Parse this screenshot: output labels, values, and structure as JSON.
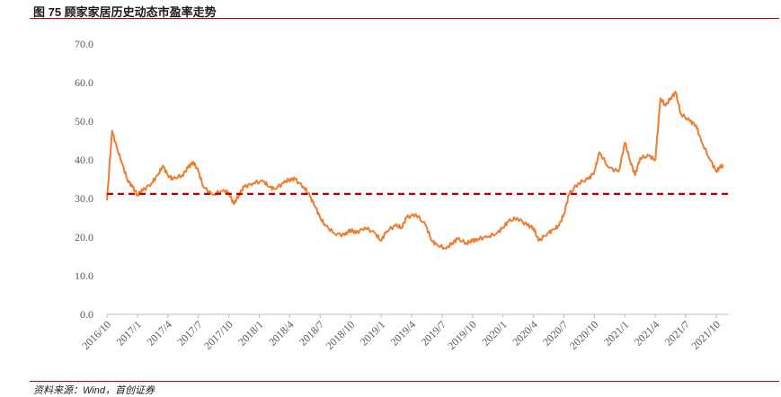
{
  "figure": {
    "title": "图 75 顾家家居历史动态市盈率走势",
    "source": "资料来源：Wind，首创证券"
  },
  "chart_data": {
    "type": "line",
    "title": "",
    "xlabel": "",
    "ylabel": "",
    "ylim": [
      0,
      70
    ],
    "yticks": [
      "0.0",
      "10.0",
      "20.0",
      "30.0",
      "40.0",
      "50.0",
      "60.0",
      "70.0"
    ],
    "yticks_values": [
      0,
      10,
      20,
      30,
      40,
      50,
      60,
      70
    ],
    "xticks": [
      "2016/10",
      "2017/1",
      "2017/4",
      "2017/7",
      "2017/10",
      "2018/1",
      "2018/4",
      "2018/7",
      "2018/10",
      "2019/1",
      "2019/4",
      "2019/7",
      "2019/10",
      "2020/1",
      "2020/4",
      "2020/7",
      "2020/10",
      "2021/1",
      "2021/4",
      "2021/7",
      "2021/10"
    ],
    "grid": false,
    "series": [
      {
        "kind": "line",
        "color": "#ed7d31",
        "x": [
          "2016/10",
          "2016/10",
          "2016/11",
          "2016/11",
          "2016/12",
          "2016/12",
          "2017/1",
          "2017/1",
          "2017/2",
          "2017/3",
          "2017/3",
          "2017/4",
          "2017/4",
          "2017/5",
          "2017/6",
          "2017/6",
          "2017/7",
          "2017/7",
          "2017/8",
          "2017/9",
          "2017/10",
          "2017/10",
          "2017/11",
          "2017/11",
          "2017/12",
          "2018/1",
          "2018/2",
          "2018/2",
          "2018/3",
          "2018/4",
          "2018/4",
          "2018/5",
          "2018/6",
          "2018/6",
          "2018/7",
          "2018/7",
          "2018/8",
          "2018/9",
          "2018/10",
          "2018/10",
          "2018/11",
          "2018/12",
          "2019/1",
          "2019/1",
          "2019/2",
          "2019/3",
          "2019/3",
          "2019/4",
          "2019/5",
          "2019/6",
          "2019/6",
          "2019/7",
          "2019/8",
          "2019/8",
          "2019/9",
          "2019/10",
          "2019/10",
          "2019/11",
          "2019/12",
          "2020/1",
          "2020/1",
          "2020/2",
          "2020/3",
          "2020/4",
          "2020/4",
          "2020/5",
          "2020/6",
          "2020/6",
          "2020/7",
          "2020/7",
          "2020/8",
          "2020/9",
          "2020/10",
          "2020/10",
          "2020/11",
          "2020/12",
          "2021/1",
          "2021/1",
          "2021/2",
          "2021/2",
          "2021/3",
          "2021/4",
          "2021/4",
          "2021/5",
          "2021/5",
          "2021/6",
          "2021/6",
          "2021/7",
          "2021/8",
          "2021/8",
          "2021/9",
          "2021/10",
          "2021/10",
          "2021/10"
        ],
        "values": [
          29.5,
          47.5,
          43.0,
          39.0,
          35.0,
          33.0,
          31.0,
          32.0,
          34.0,
          36.0,
          38.5,
          36.0,
          35.0,
          36.0,
          38.0,
          39.5,
          37.0,
          33.0,
          31.0,
          32.0,
          31.5,
          28.5,
          31.0,
          33.0,
          34.0,
          34.5,
          33.0,
          32.5,
          34.0,
          35.0,
          35.0,
          33.0,
          30.5,
          28.0,
          25.0,
          23.0,
          21.0,
          20.5,
          22.0,
          21.0,
          22.5,
          21.0,
          19.0,
          21.5,
          23.0,
          22.5,
          25.0,
          26.0,
          23.0,
          19.0,
          18.0,
          17.0,
          18.5,
          19.5,
          18.5,
          19.0,
          19.5,
          20.0,
          21.0,
          22.5,
          24.0,
          25.0,
          23.0,
          22.5,
          19.0,
          21.0,
          22.0,
          23.0,
          26.0,
          31.0,
          34.0,
          35.0,
          37.0,
          42.0,
          38.0,
          37.0,
          44.5,
          40.0,
          36.0,
          40.5,
          41.0,
          40.0,
          56.0,
          54.0,
          56.0,
          57.5,
          52.0,
          50.0,
          49.0,
          45.0,
          40.0,
          37.0,
          38.0,
          38.5
        ]
      },
      {
        "kind": "reference-line",
        "style": "dashed",
        "color": "#c00000",
        "value": 31.2
      }
    ]
  }
}
